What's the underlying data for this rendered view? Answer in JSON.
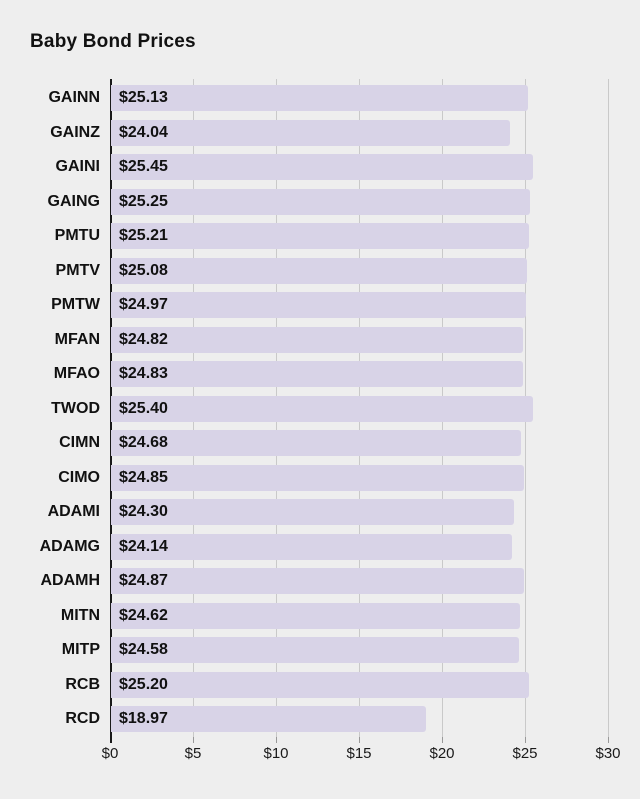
{
  "chart_data": {
    "type": "bar",
    "orientation": "horizontal",
    "title": "Baby Bond Prices",
    "categories": [
      "GAINN",
      "GAINZ",
      "GAINI",
      "GAING",
      "PMTU",
      "PMTV",
      "PMTW",
      "MFAN",
      "MFAO",
      "TWOD",
      "CIMN",
      "CIMO",
      "ADAMI",
      "ADAMG",
      "ADAMH",
      "MITN",
      "MITP",
      "RCB",
      "RCD"
    ],
    "values": [
      25.13,
      24.04,
      25.45,
      25.25,
      25.21,
      25.08,
      24.97,
      24.82,
      24.83,
      25.4,
      24.68,
      24.85,
      24.3,
      24.14,
      24.87,
      24.62,
      24.58,
      25.2,
      18.97
    ],
    "value_labels": [
      "$25.13",
      "$24.04",
      "$25.45",
      "$25.25",
      "$25.21",
      "$25.08",
      "$24.97",
      "$24.82",
      "$24.83",
      "$25.40",
      "$24.68",
      "$24.85",
      "$24.30",
      "$24.14",
      "$24.87",
      "$24.62",
      "$24.58",
      "$25.20",
      "$18.97"
    ],
    "xlabel": "",
    "ylabel": "",
    "xlim": [
      0,
      30
    ],
    "x_tick_values": [
      0,
      5,
      10,
      15,
      20,
      25,
      30
    ],
    "x_tick_labels": [
      "$0",
      "$5",
      "$10",
      "$15",
      "$20",
      "$25",
      "$30"
    ],
    "grid": true,
    "legend": false,
    "colors": {
      "bar": "#d8d3e7",
      "background": "#eeeeee",
      "gridline": "#c9c9c9",
      "zero_line": "#1a1a1a",
      "text": "#111111"
    }
  }
}
